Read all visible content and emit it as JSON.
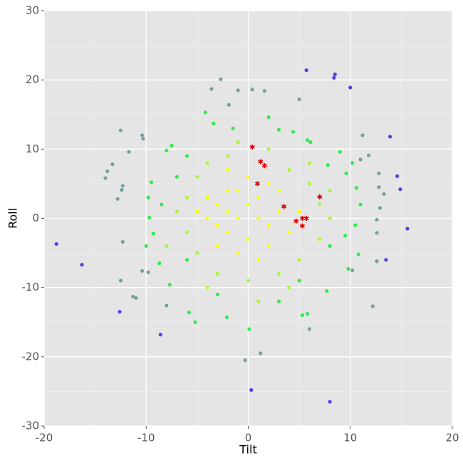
{
  "chart_data": {
    "type": "scatter",
    "x_label": "Tilt",
    "y_label": "Roll",
    "xlim": [
      -20,
      20
    ],
    "xticks": [
      -20,
      -10,
      0,
      10,
      20
    ],
    "ylim": [
      -30,
      30
    ],
    "yticks": [
      -30,
      -20,
      -10,
      0,
      10,
      20,
      30
    ],
    "grid": true,
    "series": [
      {
        "color": "#5a3ce0",
        "marker": "dot",
        "x": [
          5.7,
          8.5,
          8.4,
          10,
          -18.8,
          -16.3,
          13.9,
          14.6,
          14.9,
          15.6,
          8,
          0.3,
          -8.6,
          -12.6,
          13.5
        ],
        "values": [
          21.4,
          20.8,
          20.3,
          18.9,
          -3.7,
          -6.7,
          11.8,
          6.1,
          4.2,
          -1.5,
          -26.5,
          -24.8,
          -16.8,
          -13.5,
          -6
        ]
      },
      {
        "color": "#74a0a0",
        "marker": "dot",
        "x": [
          -2.7,
          -3.6,
          -1,
          0.4,
          1.6,
          5,
          -12.5,
          -10.4,
          -10.3,
          -11.7,
          -13.3,
          -13.8,
          -14,
          -12.3,
          -12.4,
          -12.8,
          -12.3,
          -12.5,
          -11.3,
          -11,
          -8,
          12.2,
          11.2,
          12.8,
          12.8,
          13.3,
          12.9,
          12.6,
          12.6,
          12.6,
          1.2,
          -0.3,
          6,
          11,
          11.8,
          -10.4,
          -9.8,
          10.2,
          -1.9
        ],
        "values": [
          20.1,
          18.7,
          18.5,
          18.6,
          18.4,
          17.2,
          12.7,
          12,
          11.5,
          9.6,
          7.8,
          6.8,
          5.8,
          4.7,
          4.1,
          2.8,
          -3.4,
          -9,
          -11.3,
          -11.5,
          -12.6,
          -12.7,
          12,
          6.5,
          4.5,
          3.5,
          1.5,
          -0.2,
          -2.1,
          -6.2,
          -19.5,
          -20.5,
          -16,
          8.5,
          9.1,
          -7.6,
          -7.8,
          -7.5,
          16.4
        ]
      },
      {
        "color": "#35e84e",
        "marker": "dot",
        "x": [
          -8,
          -7.5,
          -6,
          -4.2,
          -3.4,
          -1.5,
          2,
          3,
          4.4,
          5.8,
          6.1,
          -9.5,
          -9.8,
          -8.5,
          -9.7,
          -9.3,
          -10,
          -8.7,
          -7.7,
          -5.8,
          -5.2,
          -2.1,
          0.1,
          5.3,
          5.8,
          7.7,
          9.8,
          10.8,
          10.5,
          9.5,
          11,
          10.6,
          9.6,
          10.2,
          9,
          7.8,
          -6,
          -7,
          3,
          -3,
          5,
          8
        ],
        "values": [
          9.8,
          10.5,
          9,
          15.3,
          13.7,
          13,
          14.6,
          12.8,
          12.5,
          11.3,
          11,
          5.2,
          3,
          2,
          0.1,
          -2.2,
          -4,
          -6.5,
          -9.6,
          -13.6,
          -15,
          -14.3,
          -16,
          -14,
          -13.8,
          -10.5,
          -7.3,
          -5.2,
          -1,
          -2.5,
          2,
          4.4,
          6.5,
          8,
          9.6,
          7.7,
          -6,
          6,
          -12,
          -11,
          -9,
          -4
        ]
      },
      {
        "color": "#a8f83a",
        "marker": "dot",
        "x": [
          -5,
          -4,
          -2,
          2,
          4,
          6,
          7,
          8,
          7,
          5,
          3,
          0,
          -3,
          -5,
          -6,
          -7,
          -6,
          -1,
          4,
          6,
          -8,
          -4,
          8,
          1
        ],
        "values": [
          6,
          8,
          9,
          10,
          7,
          5,
          2,
          0,
          -3,
          -6,
          -8,
          -9,
          -8,
          -5,
          -2,
          1,
          3,
          11,
          -10,
          8,
          -4,
          -10,
          4,
          -12
        ]
      },
      {
        "color": "#f6ff10",
        "marker": "dot",
        "x": [
          -3,
          -2,
          -1,
          -2,
          0,
          -1,
          1,
          2,
          0,
          -3,
          -4,
          -2,
          1,
          3,
          -1,
          2,
          -4,
          3,
          -3,
          0,
          4,
          -5,
          1,
          2,
          -2,
          5
        ],
        "values": [
          2,
          1,
          0,
          -2,
          2,
          4,
          0,
          -1,
          -3,
          -1,
          0,
          4,
          3,
          1,
          -5,
          -4,
          3,
          4,
          -4,
          6,
          -2,
          1,
          -6,
          5,
          7,
          1
        ]
      },
      {
        "color": "#dd0000",
        "marker": "star",
        "x": [
          0.4,
          1.2,
          1.6,
          0.9,
          3.5,
          7,
          4.7,
          5.3,
          5.7,
          5.3
        ],
        "values": [
          10.3,
          8.2,
          7.6,
          5,
          1.7,
          3.1,
          -0.4,
          0,
          0,
          -1.1
        ]
      }
    ]
  }
}
